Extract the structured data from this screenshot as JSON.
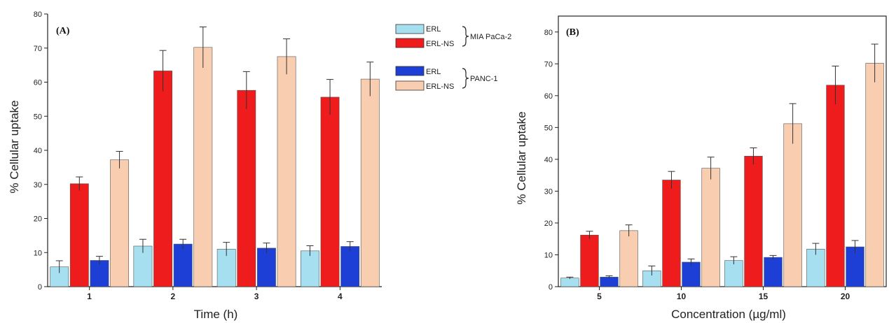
{
  "legend": {
    "groups": [
      {
        "name": "MIA PaCa-2",
        "entries": [
          {
            "label": "ERL",
            "color": "#a6dff0"
          },
          {
            "label": "ERL-NS",
            "color": "#ee1c1c"
          }
        ]
      },
      {
        "name": "PANC-1",
        "entries": [
          {
            "label": "ERL",
            "color": "#1d3fd6"
          },
          {
            "label": "ERL-NS",
            "color": "#f9cdb0"
          }
        ]
      }
    ]
  },
  "chart_data": [
    {
      "type": "bar",
      "panel_label": "(A)",
      "title": "",
      "xlabel": "Time (h)",
      "ylabel": "% Cellular uptake",
      "categories": [
        "1",
        "2",
        "3",
        "4"
      ],
      "ylim": [
        0,
        80
      ],
      "yticks": [
        0,
        10,
        20,
        30,
        40,
        50,
        60,
        70,
        80
      ],
      "grid": false,
      "series": [
        {
          "name": "ERL (MIA PaCa-2)",
          "color": "#a6dff0",
          "values": [
            5.8,
            11.9,
            11.0,
            10.5
          ],
          "errors": [
            1.8,
            2.0,
            2.0,
            1.5
          ]
        },
        {
          "name": "ERL-NS (MIA PaCa-2)",
          "color": "#ee1c1c",
          "values": [
            30.2,
            63.3,
            57.6,
            55.6
          ],
          "errors": [
            2.0,
            6.0,
            5.5,
            5.2
          ]
        },
        {
          "name": "ERL (PANC-1)",
          "color": "#1d3fd6",
          "values": [
            7.7,
            12.5,
            11.3,
            11.8
          ],
          "errors": [
            1.2,
            1.4,
            1.5,
            1.4
          ]
        },
        {
          "name": "ERL-NS (PANC-1)",
          "color": "#f9cdb0",
          "values": [
            37.2,
            70.2,
            67.5,
            60.9
          ],
          "errors": [
            2.5,
            6.0,
            5.2,
            5.0
          ]
        }
      ]
    },
    {
      "type": "bar",
      "panel_label": "(B)",
      "title": "",
      "xlabel": "Concentration (µg/ml)",
      "ylabel": "% Cellular uptake",
      "categories": [
        "5",
        "10",
        "15",
        "20"
      ],
      "ylim": [
        0,
        85
      ],
      "yticks": [
        0,
        10,
        20,
        30,
        40,
        50,
        60,
        70,
        80
      ],
      "grid": false,
      "series": [
        {
          "name": "ERL (MIA PaCa-2)",
          "color": "#a6dff0",
          "values": [
            2.7,
            5.0,
            8.2,
            11.8
          ],
          "errors": [
            0.3,
            1.5,
            1.2,
            1.8
          ]
        },
        {
          "name": "ERL-NS (MIA PaCa-2)",
          "color": "#ee1c1c",
          "values": [
            16.2,
            33.5,
            41.0,
            63.3
          ],
          "errors": [
            1.2,
            2.7,
            2.6,
            6.0
          ]
        },
        {
          "name": "ERL (PANC-1)",
          "color": "#1d3fd6",
          "values": [
            3.0,
            7.7,
            9.2,
            12.5
          ],
          "errors": [
            0.4,
            1.0,
            0.6,
            2.0
          ]
        },
        {
          "name": "ERL-NS (PANC-1)",
          "color": "#f9cdb0",
          "values": [
            17.6,
            37.2,
            51.2,
            70.2
          ],
          "errors": [
            1.8,
            3.5,
            6.3,
            6.0
          ]
        }
      ]
    }
  ]
}
